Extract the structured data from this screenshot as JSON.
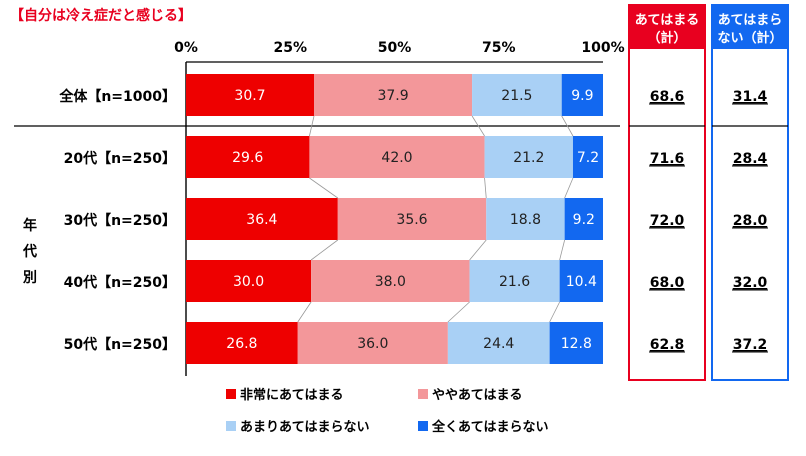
{
  "chart_data": {
    "type": "bar",
    "orientation": "horizontal",
    "stacked": true,
    "title": "【自分は冷え症だと感じる】",
    "axis_ticks": [
      "0%",
      "25%",
      "50%",
      "75%",
      "100%"
    ],
    "xlim": [
      0,
      100
    ],
    "group_label": [
      "年",
      "代",
      "別"
    ],
    "categories": [
      "全体【n=1000】",
      "20代【n=250】",
      "30代【n=250】",
      "40代【n=250】",
      "50代【n=250】"
    ],
    "series": [
      {
        "name": "非常にあてはまる",
        "color": "#ee0000",
        "values": [
          30.7,
          29.6,
          36.4,
          30.0,
          26.8
        ]
      },
      {
        "name": "ややあてはまる",
        "color": "#f3979a",
        "values": [
          37.9,
          42.0,
          35.6,
          38.0,
          36.0
        ]
      },
      {
        "name": "あまりあてはまらない",
        "color": "#a9d0f5",
        "values": [
          21.5,
          21.2,
          18.8,
          21.6,
          24.4
        ]
      },
      {
        "name": "全くあてはまらない",
        "color": "#1268f0",
        "values": [
          9.9,
          7.2,
          9.2,
          10.4,
          12.8
        ]
      }
    ],
    "summary_columns": [
      {
        "header": [
          "あてはまる",
          "（計）"
        ],
        "color": "#e8001f",
        "values": [
          "68.6",
          "71.6",
          "72.0",
          "68.0",
          "62.8"
        ]
      },
      {
        "header": [
          "あてはまら",
          "ない（計）"
        ],
        "color": "#1268f0",
        "values": [
          "31.4",
          "28.4",
          "28.0",
          "32.0",
          "37.2"
        ]
      }
    ],
    "legend_position": "bottom"
  }
}
